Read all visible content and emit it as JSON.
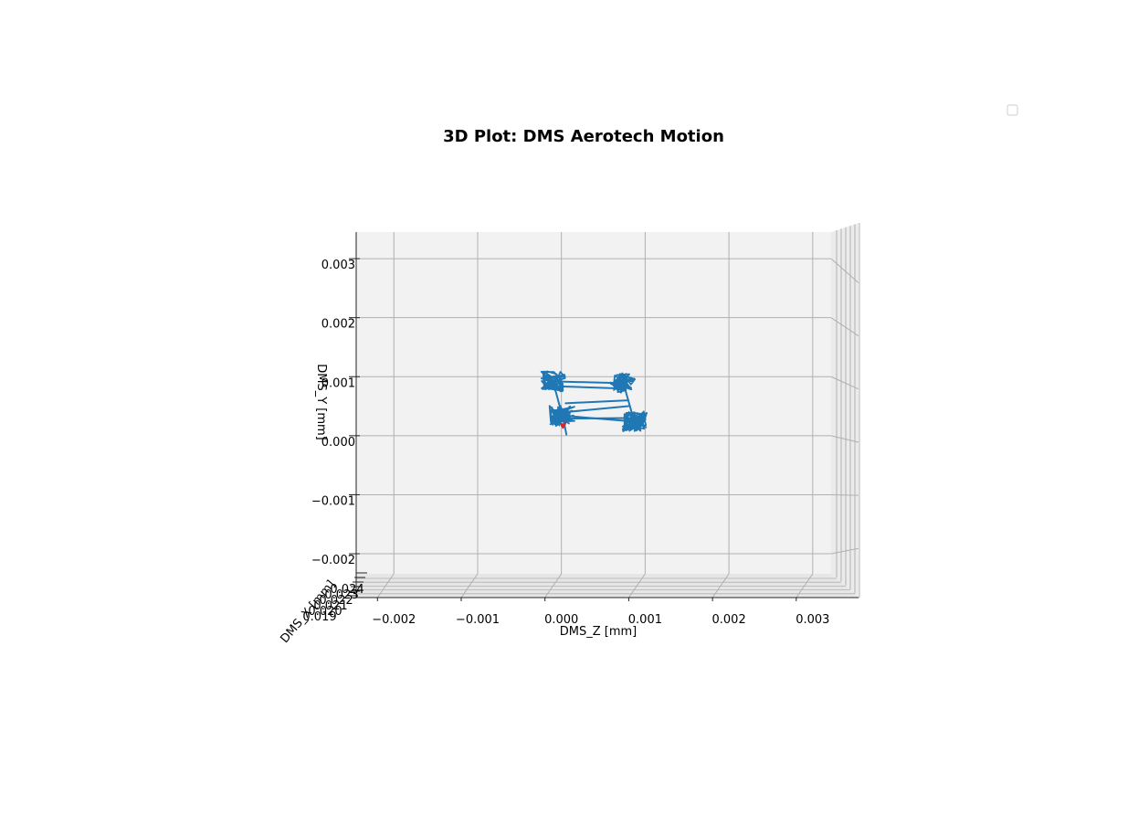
{
  "chart_data": {
    "type": "line",
    "projection": "3d",
    "title": "3D Plot: DMS Aerotech Motion",
    "xlabel": "DMS_Z [mm]",
    "ylabel": "DMS_Y [mm]",
    "zlabel": "DMS_X [mm]",
    "x_ticks": [
      "−0.002",
      "−0.001",
      "0.000",
      "0.001",
      "0.002",
      "0.003"
    ],
    "y_ticks": [
      "−0.002",
      "−0.001",
      "0.000",
      "0.001",
      "0.002",
      "0.003"
    ],
    "z_ticks": [
      "0.019",
      "0.020",
      "0.021",
      "0.022",
      "0.023",
      "0.024"
    ],
    "x_tick_values": [
      -0.002,
      -0.001,
      0.0,
      0.001,
      0.002,
      0.003
    ],
    "y_tick_values": [
      -0.002,
      -0.001,
      0.0,
      0.001,
      0.002,
      0.003
    ],
    "xlim": [
      -0.00245,
      0.00322
    ],
    "ylim": [
      -0.00234,
      0.00345
    ],
    "grid": true,
    "legend": {
      "placement": "top-right",
      "entries": []
    },
    "series": [
      {
        "color": "#1f77b4",
        "clusters": [
          {
            "z": -0.0001,
            "y": 0.00092
          },
          {
            "z": 0.00074,
            "y": 0.00089
          },
          {
            "z": 1e-05,
            "y": 0.00034
          },
          {
            "z": 0.00087,
            "y": 0.00024
          }
        ],
        "links": [
          [
            -0.0001,
            0.00092,
            0.00074,
            0.00089
          ],
          [
            -0.0001,
            0.00092,
            1e-05,
            0.00034
          ],
          [
            0.00074,
            0.00089,
            0.00087,
            0.00024
          ],
          [
            1e-05,
            0.00034,
            0.00087,
            0.00024
          ],
          [
            -0.0001,
            0.00084,
            0.0007,
            0.0008
          ],
          [
            5e-05,
            0.00055,
            0.0008,
            0.0006
          ],
          [
            1e-05,
            0.00029,
            0.00085,
            0.0003
          ],
          [
            5e-05,
            0.0004,
            0.0008,
            0.0005
          ],
          [
            2e-05,
            0.0003,
            6e-05,
            2e-05
          ]
        ]
      },
      {
        "color": "#d62728",
        "clusters": [
          {
            "z": 2e-05,
            "y": 0.00018
          }
        ],
        "links": []
      }
    ]
  }
}
